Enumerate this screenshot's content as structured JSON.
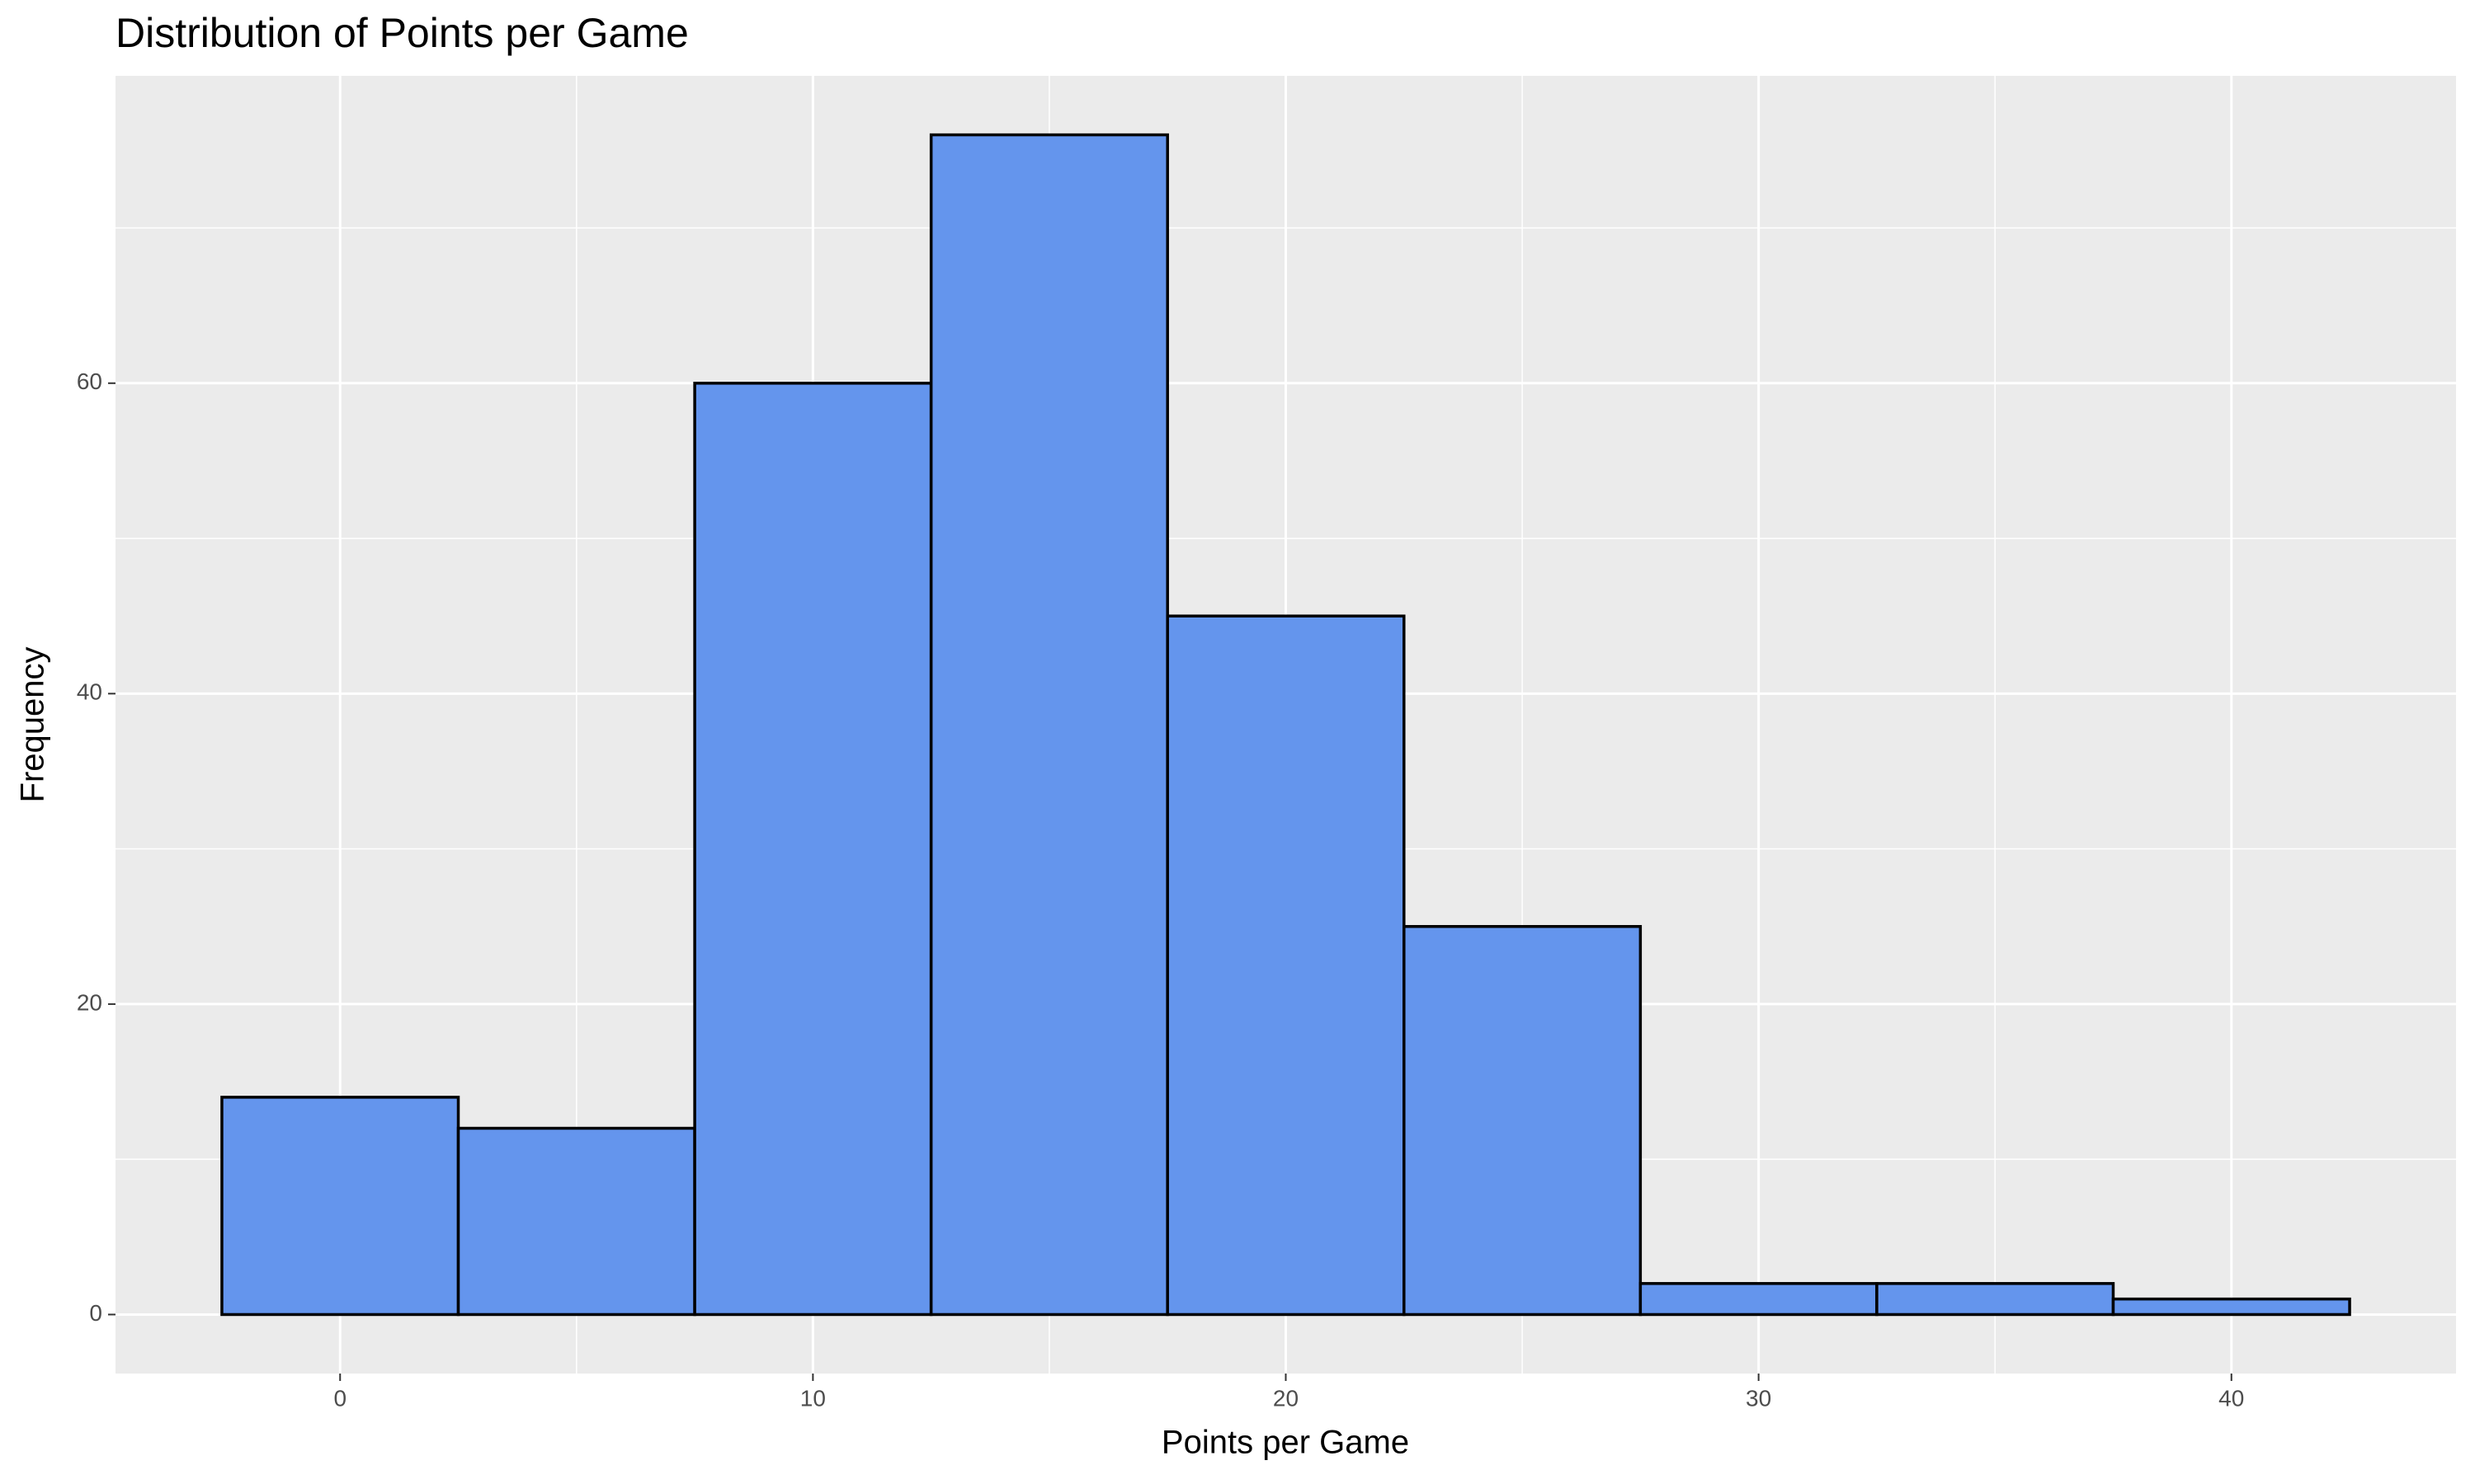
{
  "chart_data": {
    "type": "histogram",
    "title": "Distribution of Points per Game",
    "x_label": "Points per Game",
    "y_label": "Frequency",
    "bins": [
      -2.5,
      2.5,
      7.5,
      12.5,
      17.5,
      22.5,
      27.5,
      32.5,
      37.5,
      42.5
    ],
    "values": [
      14,
      12,
      60,
      76,
      45,
      25,
      2,
      2,
      1
    ],
    "color": "#6495ED",
    "edge_color": "#000000",
    "xlim": [
      -4.75,
      44.75
    ],
    "ylim": [
      -3.8,
      79.8
    ],
    "xticks": [
      0,
      10,
      20,
      30,
      40
    ],
    "yticks": [
      0,
      20,
      40,
      60
    ],
    "grid": true
  }
}
